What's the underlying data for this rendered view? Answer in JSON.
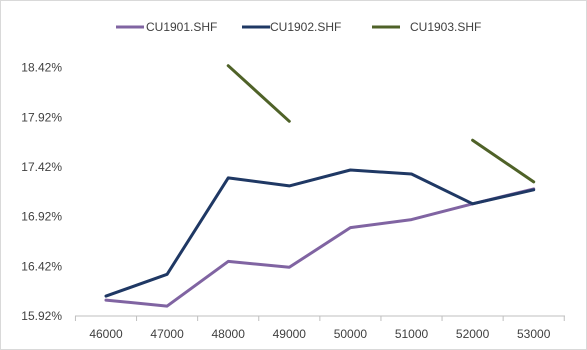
{
  "chart_data": {
    "type": "line",
    "title": "",
    "xlabel": "",
    "ylabel": "",
    "x": [
      46000,
      47000,
      48000,
      49000,
      50000,
      51000,
      52000,
      53000
    ],
    "x_tick_labels": [
      "46000",
      "47000",
      "48000",
      "49000",
      "50000",
      "51000",
      "52000",
      "53000"
    ],
    "y_ticks": [
      15.92,
      16.42,
      16.92,
      17.42,
      17.92,
      18.42
    ],
    "y_tick_labels": [
      "15.92%",
      "16.42%",
      "16.92%",
      "17.42%",
      "17.92%",
      "18.42%"
    ],
    "ylim": [
      15.92,
      18.92
    ],
    "y_unit": "%",
    "grid": false,
    "legend_position": "top",
    "series": [
      {
        "name": "CU1901.SHF",
        "color": "#8064a2",
        "values": [
          16.08,
          16.02,
          16.47,
          16.41,
          16.81,
          16.89,
          17.05,
          17.2
        ]
      },
      {
        "name": "CU1902.SHF",
        "color": "#1f3864",
        "values": [
          16.12,
          16.34,
          17.31,
          17.23,
          17.39,
          17.35,
          17.05,
          17.19
        ]
      },
      {
        "name": "CU1903.SHF",
        "color": "#4f6228",
        "values": [
          null,
          null,
          18.44,
          17.88,
          null,
          null,
          17.69,
          17.27
        ]
      }
    ]
  }
}
